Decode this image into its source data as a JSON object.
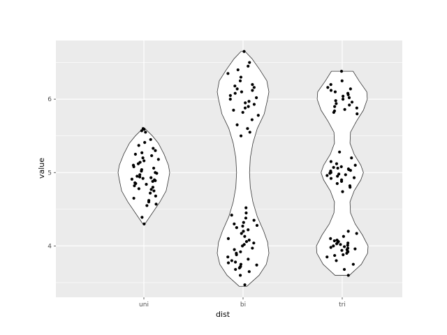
{
  "chart_data": {
    "type": "violin",
    "xlabel": "dist",
    "ylabel": "value",
    "categories": [
      "uni",
      "bi",
      "tri"
    ],
    "ylim": [
      3.3,
      6.8
    ],
    "yticks": [
      4,
      5,
      6
    ],
    "grid": true,
    "theme": "gray panel, white gridlines",
    "colors": {
      "panel": "#ebebeb",
      "grid": "#ffffff",
      "violin_fill": "#ffffff",
      "violin_stroke": "#333333",
      "point": "#000000"
    },
    "series": [
      {
        "category": "uni",
        "violin_profile": [
          [
            4.3,
            0.04
          ],
          [
            4.45,
            0.33
          ],
          [
            4.6,
            0.62
          ],
          [
            4.75,
            0.86
          ],
          [
            4.9,
            0.95
          ],
          [
            5.0,
            1.0
          ],
          [
            5.1,
            0.95
          ],
          [
            5.25,
            0.78
          ],
          [
            5.4,
            0.56
          ],
          [
            5.5,
            0.33
          ],
          [
            5.6,
            0.04
          ]
        ],
        "points": [
          4.3,
          4.39,
          4.55,
          4.57,
          4.6,
          4.62,
          4.65,
          4.68,
          4.72,
          4.75,
          4.77,
          4.78,
          4.8,
          4.82,
          4.84,
          4.85,
          4.86,
          4.88,
          4.89,
          4.9,
          4.91,
          4.92,
          4.93,
          4.94,
          4.95,
          4.97,
          4.99,
          5.0,
          5.02,
          5.04,
          5.06,
          5.08,
          5.1,
          5.12,
          5.14,
          5.16,
          5.18,
          5.2,
          5.23,
          5.25,
          5.27,
          5.3,
          5.33,
          5.37,
          5.41,
          5.45,
          5.55,
          5.57,
          5.59,
          5.6
        ]
      },
      {
        "category": "bi",
        "violin_profile": [
          [
            3.45,
            0.15
          ],
          [
            3.6,
            0.62
          ],
          [
            3.75,
            0.9
          ],
          [
            3.9,
            1.0
          ],
          [
            4.05,
            0.95
          ],
          [
            4.2,
            0.8
          ],
          [
            4.4,
            0.55
          ],
          [
            4.6,
            0.38
          ],
          [
            4.8,
            0.28
          ],
          [
            5.0,
            0.25
          ],
          [
            5.2,
            0.28
          ],
          [
            5.4,
            0.38
          ],
          [
            5.6,
            0.55
          ],
          [
            5.8,
            0.82
          ],
          [
            6.0,
            0.95
          ],
          [
            6.1,
            1.0
          ],
          [
            6.25,
            0.92
          ],
          [
            6.4,
            0.65
          ],
          [
            6.55,
            0.35
          ],
          [
            6.65,
            0.08
          ]
        ],
        "points": [
          3.47,
          3.6,
          3.65,
          3.68,
          3.7,
          3.71,
          3.72,
          3.74,
          3.75,
          3.77,
          3.78,
          3.8,
          3.82,
          3.85,
          3.88,
          3.9,
          3.92,
          3.95,
          3.97,
          4.0,
          4.02,
          4.04,
          4.06,
          4.08,
          4.1,
          4.13,
          4.17,
          4.2,
          4.22,
          4.25,
          4.27,
          4.28,
          4.3,
          4.32,
          4.35,
          4.38,
          4.42,
          4.45,
          4.52,
          5.5,
          5.55,
          5.6,
          5.65,
          5.72,
          5.78,
          5.82,
          5.85,
          5.88,
          5.9,
          5.93,
          5.95,
          5.97,
          6.0,
          6.02,
          6.05,
          6.08,
          6.1,
          6.12,
          6.14,
          6.16,
          6.18,
          6.2,
          6.25,
          6.3,
          6.35,
          6.4,
          6.45,
          6.5,
          6.65
        ]
      },
      {
        "category": "tri",
        "violin_profile": [
          [
            3.6,
            0.28
          ],
          [
            3.75,
            0.74
          ],
          [
            3.9,
            0.98
          ],
          [
            4.0,
            1.0
          ],
          [
            4.15,
            0.78
          ],
          [
            4.3,
            0.5
          ],
          [
            4.45,
            0.32
          ],
          [
            4.6,
            0.3
          ],
          [
            4.75,
            0.46
          ],
          [
            4.9,
            0.72
          ],
          [
            5.0,
            0.82
          ],
          [
            5.1,
            0.72
          ],
          [
            5.25,
            0.46
          ],
          [
            5.4,
            0.3
          ],
          [
            5.55,
            0.32
          ],
          [
            5.7,
            0.55
          ],
          [
            5.85,
            0.82
          ],
          [
            6.0,
            0.97
          ],
          [
            6.1,
            0.95
          ],
          [
            6.25,
            0.65
          ],
          [
            6.38,
            0.42
          ]
        ],
        "points": [
          3.6,
          3.68,
          3.75,
          3.8,
          3.85,
          3.87,
          3.88,
          3.9,
          3.92,
          3.93,
          3.94,
          3.95,
          3.96,
          3.97,
          3.98,
          3.99,
          4.0,
          4.01,
          4.02,
          4.03,
          4.04,
          4.05,
          4.06,
          4.07,
          4.08,
          4.1,
          4.13,
          4.17,
          4.2,
          4.74,
          4.8,
          4.82,
          4.85,
          4.88,
          4.9,
          4.92,
          4.93,
          4.95,
          4.96,
          4.97,
          4.98,
          4.99,
          5.0,
          5.01,
          5.02,
          5.03,
          5.04,
          5.05,
          5.06,
          5.07,
          5.08,
          5.1,
          5.12,
          5.15,
          5.2,
          5.28,
          5.8,
          5.82,
          5.84,
          5.86,
          5.88,
          5.9,
          5.92,
          5.94,
          5.96,
          5.98,
          6.0,
          6.02,
          6.04,
          6.06,
          6.08,
          6.1,
          6.12,
          6.14,
          6.16,
          6.2,
          6.25,
          6.38
        ]
      }
    ]
  }
}
